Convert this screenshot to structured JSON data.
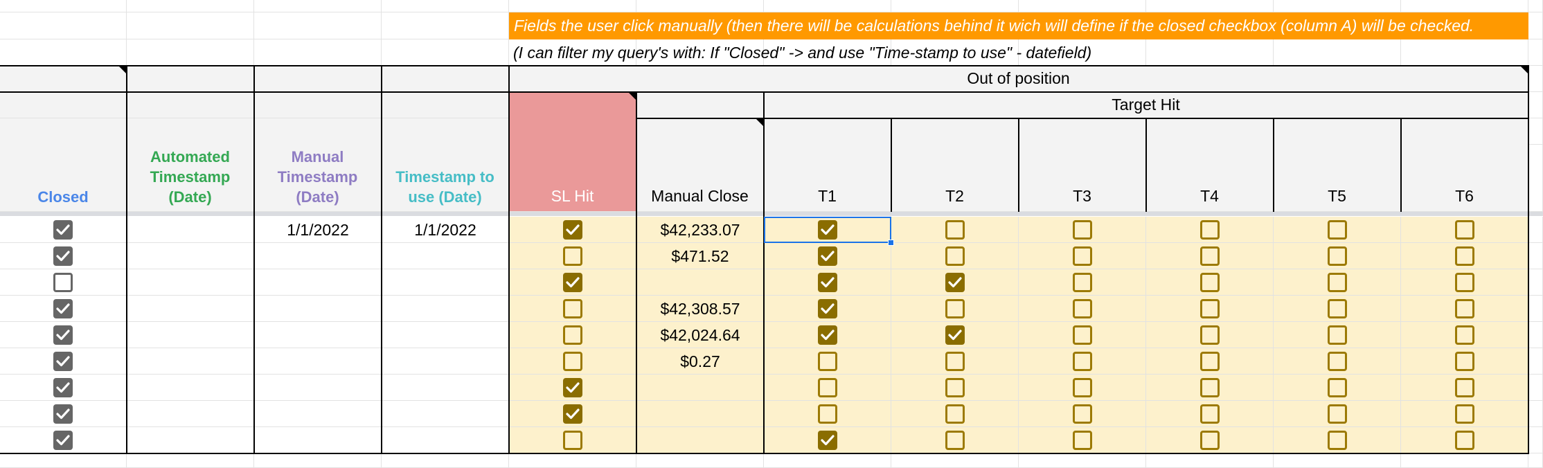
{
  "notes": {
    "orange": "Fields the user click manually (then there will be calculations behind it wich will define if the closed checkbox (column A) will be checked.",
    "filter": "(I can filter my query's with: If \"Closed\" -> and use \"Time-stamp to use\" - datefield)"
  },
  "headers": {
    "out_of_position": "Out of position",
    "target_hit": "Target Hit",
    "closed": "Closed",
    "automated": [
      "Automated",
      "Timestamp",
      "(Date)"
    ],
    "manual": [
      "Manual",
      "Timestamp",
      "(Date)"
    ],
    "to_use": [
      "Timestamp to",
      "use (Date)"
    ],
    "sl_hit": "SL Hit",
    "manual_close": "Manual Close",
    "targets": [
      "T1",
      "T2",
      "T3",
      "T4",
      "T5",
      "T6"
    ]
  },
  "colors": {
    "closed_header": "#4a86e8",
    "automated_header": "#34a853",
    "manual_header": "#8e7cc3",
    "to_use_header": "#46bdc6",
    "note_bg": "#ff9900",
    "checkbox_gold": "#8a6d00",
    "checkbox_gray": "#666666"
  },
  "rows": [
    {
      "closed": true,
      "manual_ts": "1/1/2022",
      "ts_to_use": "1/1/2022",
      "sl": true,
      "manual_close": "$42,233.07",
      "t": [
        true,
        false,
        false,
        false,
        false,
        false
      ]
    },
    {
      "closed": true,
      "manual_ts": "",
      "ts_to_use": "",
      "sl": false,
      "manual_close": "$471.52",
      "t": [
        true,
        false,
        false,
        false,
        false,
        false
      ]
    },
    {
      "closed": false,
      "manual_ts": "",
      "ts_to_use": "",
      "sl": true,
      "manual_close": "",
      "t": [
        true,
        true,
        false,
        false,
        false,
        false
      ]
    },
    {
      "closed": true,
      "manual_ts": "",
      "ts_to_use": "",
      "sl": false,
      "manual_close": "$42,308.57",
      "t": [
        true,
        false,
        false,
        false,
        false,
        false
      ]
    },
    {
      "closed": true,
      "manual_ts": "",
      "ts_to_use": "",
      "sl": false,
      "manual_close": "$42,024.64",
      "t": [
        true,
        true,
        false,
        false,
        false,
        false
      ]
    },
    {
      "closed": true,
      "manual_ts": "",
      "ts_to_use": "",
      "sl": false,
      "manual_close": "$0.27",
      "t": [
        false,
        false,
        false,
        false,
        false,
        false
      ]
    },
    {
      "closed": true,
      "manual_ts": "",
      "ts_to_use": "",
      "sl": true,
      "manual_close": "",
      "t": [
        false,
        false,
        false,
        false,
        false,
        false
      ]
    },
    {
      "closed": true,
      "manual_ts": "",
      "ts_to_use": "",
      "sl": true,
      "manual_close": "",
      "t": [
        false,
        false,
        false,
        false,
        false,
        false
      ]
    },
    {
      "closed": true,
      "manual_ts": "",
      "ts_to_use": "",
      "sl": false,
      "manual_close": "",
      "t": [
        true,
        false,
        false,
        false,
        false,
        false
      ]
    }
  ]
}
